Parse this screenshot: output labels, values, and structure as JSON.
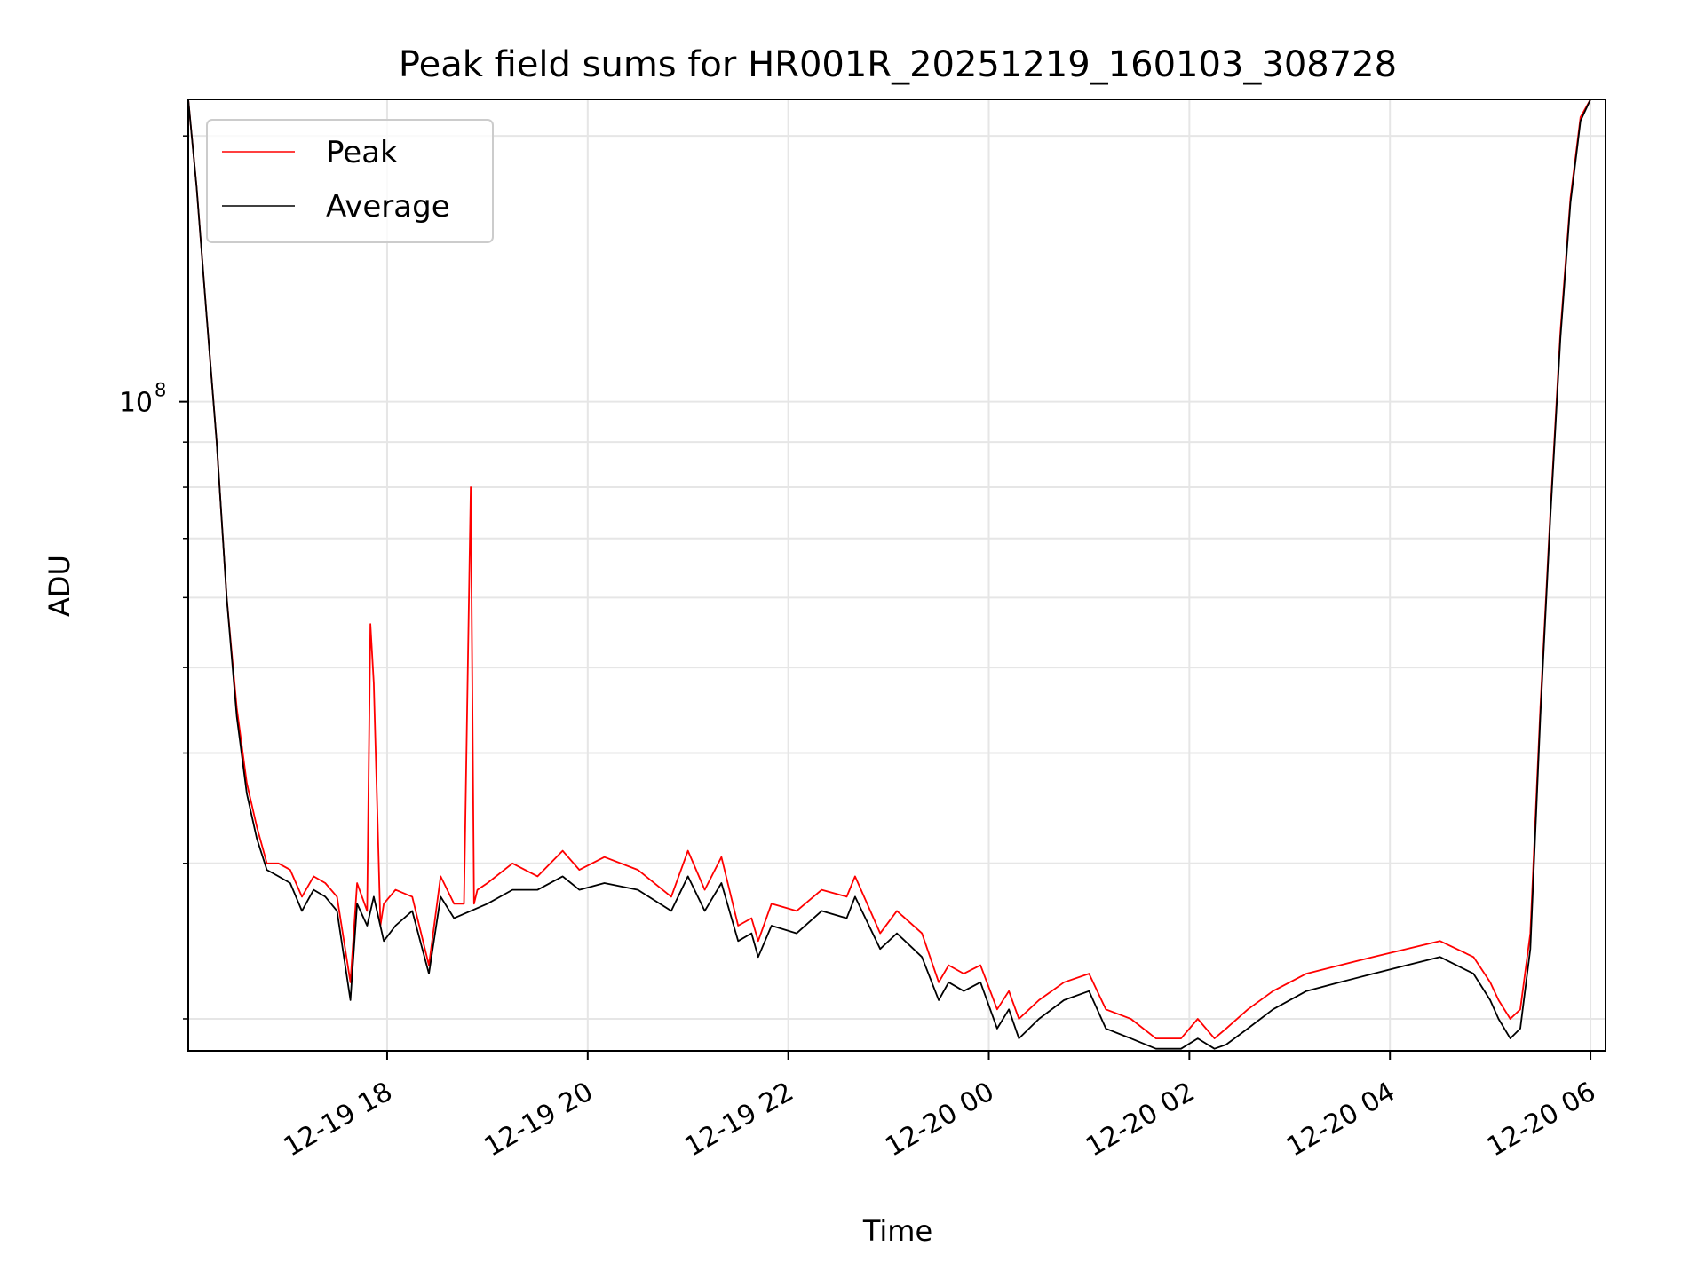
{
  "chart_data": {
    "type": "line",
    "title": "Peak field sums for HR001R_20251219_160103_308728",
    "xlabel": "Time",
    "ylabel": "ADU",
    "y_scale": "log",
    "ylim": [
      18400000,
      220000000
    ],
    "xlim": [
      "2025-12-19 16:01",
      "2025-12-20 06:09"
    ],
    "grid": true,
    "x_ticks": [
      {
        "label": "12-19 18",
        "value": "2025-12-19 18:00"
      },
      {
        "label": "12-19 20",
        "value": "2025-12-19 20:00"
      },
      {
        "label": "12-19 22",
        "value": "2025-12-19 22:00"
      },
      {
        "label": "12-20 00",
        "value": "2025-12-20 00:00"
      },
      {
        "label": "12-20 02",
        "value": "2025-12-20 02:00"
      },
      {
        "label": "12-20 04",
        "value": "2025-12-20 04:00"
      },
      {
        "label": "12-20 06",
        "value": "2025-12-20 06:00"
      }
    ],
    "y_ticks": [
      {
        "label": "10",
        "superscript": "8",
        "value": 100000000
      }
    ],
    "y_minor_ticks": [
      20000000,
      30000000,
      40000000,
      50000000,
      60000000,
      70000000,
      80000000,
      90000000,
      200000000
    ],
    "legend": {
      "position": "upper-left",
      "entries": [
        {
          "name": "Peak",
          "color": "#ff0000"
        },
        {
          "name": "Average",
          "color": "#000000"
        }
      ]
    },
    "series": [
      {
        "name": "Peak",
        "color": "#ff0000",
        "x": [
          "2025-12-19 16:01",
          "2025-12-19 16:06",
          "2025-12-19 16:12",
          "2025-12-19 16:18",
          "2025-12-19 16:24",
          "2025-12-19 16:30",
          "2025-12-19 16:36",
          "2025-12-19 16:42",
          "2025-12-19 16:48",
          "2025-12-19 16:55",
          "2025-12-19 17:02",
          "2025-12-19 17:09",
          "2025-12-19 17:16",
          "2025-12-19 17:23",
          "2025-12-19 17:30",
          "2025-12-19 17:38",
          "2025-12-19 17:42",
          "2025-12-19 17:48",
          "2025-12-19 17:50",
          "2025-12-19 17:52",
          "2025-12-19 17:54",
          "2025-12-19 17:56",
          "2025-12-19 17:58",
          "2025-12-19 18:05",
          "2025-12-19 18:15",
          "2025-12-19 18:25",
          "2025-12-19 18:32",
          "2025-12-19 18:40",
          "2025-12-19 18:46",
          "2025-12-19 18:50",
          "2025-12-19 18:52",
          "2025-12-19 18:54",
          "2025-12-19 19:00",
          "2025-12-19 19:15",
          "2025-12-19 19:30",
          "2025-12-19 19:45",
          "2025-12-19 19:55",
          "2025-12-19 20:10",
          "2025-12-19 20:30",
          "2025-12-19 20:50",
          "2025-12-19 21:00",
          "2025-12-19 21:10",
          "2025-12-19 21:20",
          "2025-12-19 21:30",
          "2025-12-19 21:38",
          "2025-12-19 21:42",
          "2025-12-19 21:50",
          "2025-12-19 22:05",
          "2025-12-19 22:20",
          "2025-12-19 22:35",
          "2025-12-19 22:40",
          "2025-12-19 22:55",
          "2025-12-19 23:05",
          "2025-12-19 23:20",
          "2025-12-19 23:30",
          "2025-12-19 23:36",
          "2025-12-19 23:45",
          "2025-12-19 23:55",
          "2025-12-20 00:05",
          "2025-12-20 00:12",
          "2025-12-20 00:18",
          "2025-12-20 00:30",
          "2025-12-20 00:45",
          "2025-12-20 01:00",
          "2025-12-20 01:10",
          "2025-12-20 01:25",
          "2025-12-20 01:40",
          "2025-12-20 01:55",
          "2025-12-20 02:05",
          "2025-12-20 02:15",
          "2025-12-20 02:22",
          "2025-12-20 02:35",
          "2025-12-20 02:50",
          "2025-12-20 03:10",
          "2025-12-20 03:30",
          "2025-12-20 03:50",
          "2025-12-20 04:10",
          "2025-12-20 04:30",
          "2025-12-20 04:50",
          "2025-12-20 05:00",
          "2025-12-20 05:05",
          "2025-12-20 05:12",
          "2025-12-20 05:18",
          "2025-12-20 05:24",
          "2025-12-20 05:30",
          "2025-12-20 05:36",
          "2025-12-20 05:42",
          "2025-12-20 05:48",
          "2025-12-20 05:54",
          "2025-12-20 06:00"
        ],
        "values": [
          220000000,
          175000000,
          125000000,
          90000000,
          60000000,
          45000000,
          37000000,
          33000000,
          30000000,
          30000000,
          29500000,
          27500000,
          29000000,
          28500000,
          27500000,
          22000000,
          28500000,
          26500000,
          56000000,
          48000000,
          35000000,
          25500000,
          27000000,
          28000000,
          27500000,
          23000000,
          29000000,
          27000000,
          27000000,
          80000000,
          27000000,
          28000000,
          28500000,
          30000000,
          29000000,
          31000000,
          29500000,
          30500000,
          29500000,
          27500000,
          31000000,
          28000000,
          30500000,
          25500000,
          26000000,
          24500000,
          27000000,
          26500000,
          28000000,
          27500000,
          29000000,
          25000000,
          26500000,
          25000000,
          22000000,
          23000000,
          22500000,
          23000000,
          20500000,
          21500000,
          20000000,
          21000000,
          22000000,
          22500000,
          20500000,
          20000000,
          19000000,
          19000000,
          20000000,
          19000000,
          19500000,
          20500000,
          21500000,
          22500000,
          23000000,
          23500000,
          24000000,
          24500000,
          23500000,
          22000000,
          21000000,
          20000000,
          20500000,
          25000000,
          45000000,
          75000000,
          120000000,
          170000000,
          210000000,
          220000000
        ]
      },
      {
        "name": "Average",
        "color": "#000000",
        "x": [
          "2025-12-19 16:01",
          "2025-12-19 16:06",
          "2025-12-19 16:12",
          "2025-12-19 16:18",
          "2025-12-19 16:24",
          "2025-12-19 16:30",
          "2025-12-19 16:36",
          "2025-12-19 16:42",
          "2025-12-19 16:48",
          "2025-12-19 16:55",
          "2025-12-19 17:02",
          "2025-12-19 17:09",
          "2025-12-19 17:16",
          "2025-12-19 17:23",
          "2025-12-19 17:30",
          "2025-12-19 17:38",
          "2025-12-19 17:42",
          "2025-12-19 17:48",
          "2025-12-19 17:52",
          "2025-12-19 17:58",
          "2025-12-19 18:05",
          "2025-12-19 18:15",
          "2025-12-19 18:25",
          "2025-12-19 18:32",
          "2025-12-19 18:40",
          "2025-12-19 18:50",
          "2025-12-19 19:00",
          "2025-12-19 19:15",
          "2025-12-19 19:30",
          "2025-12-19 19:45",
          "2025-12-19 19:55",
          "2025-12-19 20:10",
          "2025-12-19 20:30",
          "2025-12-19 20:50",
          "2025-12-19 21:00",
          "2025-12-19 21:10",
          "2025-12-19 21:20",
          "2025-12-19 21:30",
          "2025-12-19 21:38",
          "2025-12-19 21:42",
          "2025-12-19 21:50",
          "2025-12-19 22:05",
          "2025-12-19 22:20",
          "2025-12-19 22:35",
          "2025-12-19 22:40",
          "2025-12-19 22:55",
          "2025-12-19 23:05",
          "2025-12-19 23:20",
          "2025-12-19 23:30",
          "2025-12-19 23:36",
          "2025-12-19 23:45",
          "2025-12-19 23:55",
          "2025-12-20 00:05",
          "2025-12-20 00:12",
          "2025-12-20 00:18",
          "2025-12-20 00:30",
          "2025-12-20 00:45",
          "2025-12-20 01:00",
          "2025-12-20 01:10",
          "2025-12-20 01:25",
          "2025-12-20 01:40",
          "2025-12-20 01:55",
          "2025-12-20 02:05",
          "2025-12-20 02:15",
          "2025-12-20 02:22",
          "2025-12-20 02:35",
          "2025-12-20 02:50",
          "2025-12-20 03:10",
          "2025-12-20 03:30",
          "2025-12-20 03:50",
          "2025-12-20 04:10",
          "2025-12-20 04:30",
          "2025-12-20 04:50",
          "2025-12-20 05:00",
          "2025-12-20 05:05",
          "2025-12-20 05:12",
          "2025-12-20 05:18",
          "2025-12-20 05:24",
          "2025-12-20 05:30",
          "2025-12-20 05:36",
          "2025-12-20 05:42",
          "2025-12-20 05:48",
          "2025-12-20 05:54",
          "2025-12-20 06:00"
        ],
        "values": [
          220000000,
          175000000,
          125000000,
          90000000,
          60000000,
          44000000,
          36000000,
          32000000,
          29500000,
          29000000,
          28500000,
          26500000,
          28000000,
          27500000,
          26500000,
          21000000,
          27000000,
          25500000,
          27500000,
          24500000,
          25500000,
          26500000,
          22500000,
          27500000,
          26000000,
          26500000,
          27000000,
          28000000,
          28000000,
          29000000,
          28000000,
          28500000,
          28000000,
          26500000,
          29000000,
          26500000,
          28500000,
          24500000,
          25000000,
          23500000,
          25500000,
          25000000,
          26500000,
          26000000,
          27500000,
          24000000,
          25000000,
          23500000,
          21000000,
          22000000,
          21500000,
          22000000,
          19500000,
          20500000,
          19000000,
          20000000,
          21000000,
          21500000,
          19500000,
          19000000,
          18500000,
          18500000,
          19000000,
          18500000,
          18700000,
          19500000,
          20500000,
          21500000,
          22000000,
          22500000,
          23000000,
          23500000,
          22500000,
          21000000,
          20000000,
          19000000,
          19500000,
          24000000,
          44000000,
          74000000,
          118000000,
          168000000,
          208000000,
          220000000
        ]
      }
    ]
  }
}
